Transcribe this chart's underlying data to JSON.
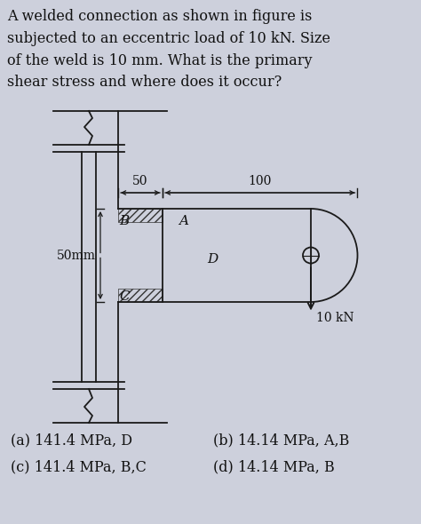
{
  "background_color": "#cdd0dc",
  "title_text": "A welded connection as shown in figure is\nsubjected to an eccentric load of 10 kN. Size\nof the weld is 10 mm. What is the primary\nshear stress and where does it occur?",
  "title_fontsize": 11.5,
  "answer_a": "(a) 141.4 MPa, D",
  "answer_b": "(b) 14.14 MPa, A,B",
  "answer_c": "(c) 141.4 MPa, B,C",
  "answer_d": "(d) 14.14 MPa, B",
  "dim_50_label": "50",
  "dim_100_label": "100",
  "dim_50mm_label": "50mm",
  "label_A": "A",
  "label_B": "B",
  "label_C": "C",
  "label_D": "D",
  "force_label": "10 kN",
  "line_color": "#1a1a1a",
  "hatch_color": "#333333",
  "text_color": "#111111",
  "fig_width": 4.74,
  "fig_height": 5.9,
  "dpi": 100
}
